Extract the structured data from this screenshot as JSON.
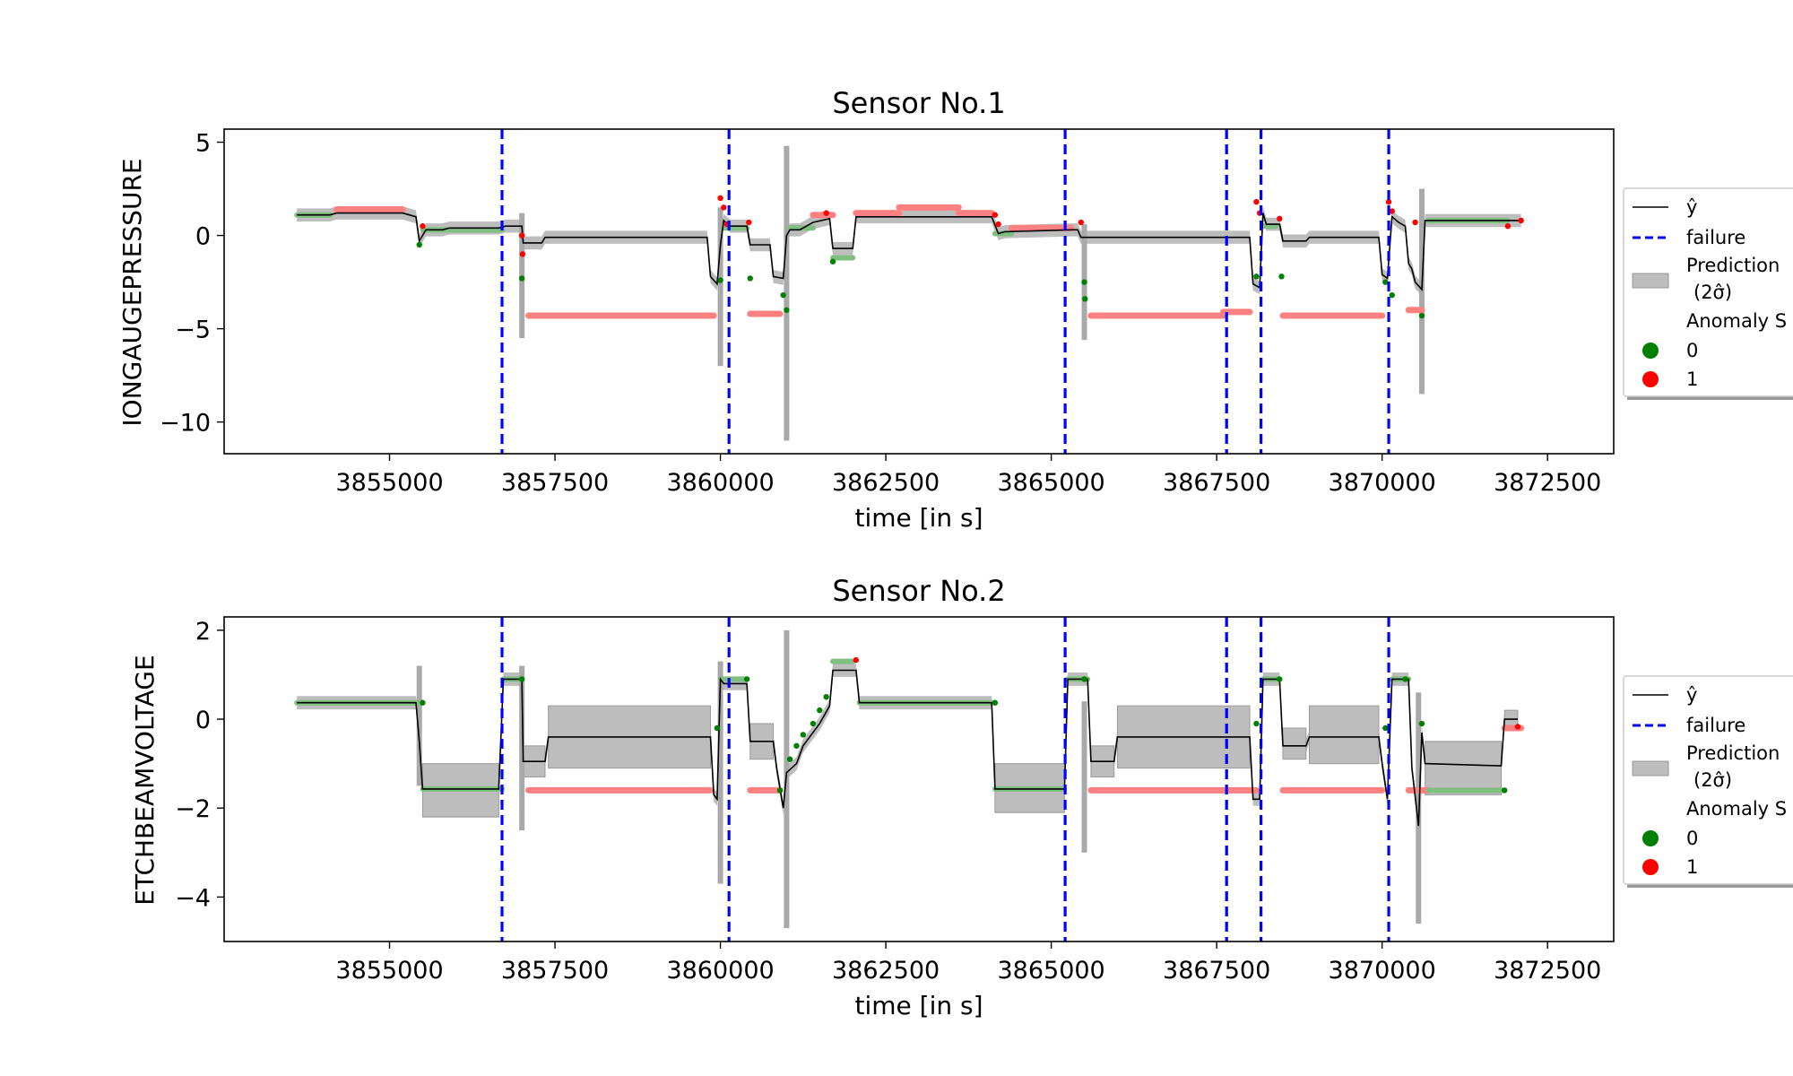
{
  "chart_data": [
    {
      "type": "line",
      "title": "Sensor No.1",
      "xlabel": "time [in s]",
      "ylabel": "IONGAUGEPRESSURE",
      "xlim": [
        3852500,
        3873500
      ],
      "ylim": [
        -11.7,
        5.7
      ],
      "xticks": [
        3855000,
        3857500,
        3860000,
        3862500,
        3865000,
        3867500,
        3870000,
        3872500
      ],
      "xtick_labels": [
        "3855000",
        "3857500",
        "3860000",
        "3862500",
        "3865000",
        "3867500",
        "3870000",
        "3872500"
      ],
      "yticks": [
        5,
        0,
        -5,
        -10
      ],
      "ytick_labels": [
        "5",
        "0",
        "−5",
        "−10"
      ],
      "failures": [
        3856700,
        3860130,
        3865210,
        3867650,
        3868170,
        3870100
      ],
      "y_hat": [
        [
          3853600,
          1.1
        ],
        [
          3854100,
          1.1
        ],
        [
          3854200,
          1.2
        ],
        [
          3855200,
          1.2
        ],
        [
          3855400,
          1.0
        ],
        [
          3855450,
          -0.3
        ],
        [
          3855550,
          0.3
        ],
        [
          3855800,
          0.3
        ],
        [
          3855900,
          0.4
        ],
        [
          3856650,
          0.4
        ],
        [
          3856750,
          0.5
        ],
        [
          3857000,
          0.5
        ],
        [
          3857020,
          -0.4
        ],
        [
          3857300,
          -0.4
        ],
        [
          3857350,
          -0.1
        ],
        [
          3859800,
          -0.1
        ],
        [
          3859850,
          -2.2
        ],
        [
          3859950,
          -2.6
        ],
        [
          3860000,
          -0.5
        ],
        [
          3860050,
          0.8
        ],
        [
          3860150,
          0.5
        ],
        [
          3860400,
          0.5
        ],
        [
          3860450,
          -0.5
        ],
        [
          3860750,
          -0.5
        ],
        [
          3860800,
          -2.2
        ],
        [
          3860950,
          -2.3
        ],
        [
          3861000,
          0.0
        ],
        [
          3861050,
          0.3
        ],
        [
          3861200,
          0.3
        ],
        [
          3861300,
          0.5
        ],
        [
          3861400,
          0.7
        ],
        [
          3861650,
          0.9
        ],
        [
          3861700,
          -0.7
        ],
        [
          3862000,
          -0.7
        ],
        [
          3862050,
          1.0
        ],
        [
          3864100,
          1.0
        ],
        [
          3864200,
          0.1
        ],
        [
          3864300,
          0.2
        ],
        [
          3865300,
          0.3
        ],
        [
          3865400,
          0.3
        ],
        [
          3865450,
          -0.1
        ],
        [
          3868000,
          -0.1
        ],
        [
          3868050,
          -2.6
        ],
        [
          3868150,
          -2.8
        ],
        [
          3868200,
          1.2
        ],
        [
          3868250,
          0.6
        ],
        [
          3868450,
          0.6
        ],
        [
          3868500,
          -0.3
        ],
        [
          3868850,
          -0.3
        ],
        [
          3868900,
          -0.1
        ],
        [
          3869950,
          -0.1
        ],
        [
          3870000,
          -2.1
        ],
        [
          3870080,
          -2.3
        ],
        [
          3870150,
          1.0
        ],
        [
          3870250,
          0.7
        ],
        [
          3870350,
          0.5
        ],
        [
          3870400,
          -1.5
        ],
        [
          3870450,
          -1.8
        ],
        [
          3870500,
          -2.5
        ],
        [
          3870600,
          -2.9
        ],
        [
          3870650,
          0.8
        ],
        [
          3871900,
          0.8
        ],
        [
          3872100,
          0.8
        ]
      ],
      "band_half_width": 0.35,
      "spikes": [
        [
          3857000,
          -5.5,
          1.2
        ],
        [
          3860000,
          -7.0,
          1.5
        ],
        [
          3861000,
          -11.0,
          4.8
        ],
        [
          3865500,
          -5.6,
          0.6
        ],
        [
          3870600,
          -8.5,
          2.5
        ]
      ],
      "anomaly_segments_1": [
        [
          3854200,
          3855200,
          1.4
        ],
        [
          3857100,
          3859900,
          -4.3
        ],
        [
          3860450,
          3860900,
          -4.2
        ],
        [
          3861400,
          3861700,
          1.1
        ],
        [
          3862050,
          3862700,
          1.2
        ],
        [
          3862700,
          3863600,
          1.5
        ],
        [
          3863600,
          3864100,
          1.2
        ],
        [
          3864400,
          3865300,
          0.4
        ],
        [
          3865600,
          3867600,
          -4.3
        ],
        [
          3867600,
          3868000,
          -4.1
        ],
        [
          3868500,
          3870000,
          -4.3
        ],
        [
          3870400,
          3870600,
          -4.0
        ]
      ],
      "anomaly_segments_0": [
        [
          3853600,
          3854100,
          1.1
        ],
        [
          3855500,
          3856700,
          0.3
        ],
        [
          3860050,
          3860400,
          0.4
        ],
        [
          3861050,
          3861400,
          0.4
        ],
        [
          3861700,
          3862000,
          -1.2
        ],
        [
          3864150,
          3864400,
          0.1
        ],
        [
          3868200,
          3868400,
          0.5
        ],
        [
          3870700,
          3871900,
          0.8
        ]
      ],
      "anomaly_points_1": [
        [
          3855500,
          0.5
        ],
        [
          3857000,
          0.0
        ],
        [
          3857010,
          -1.0
        ],
        [
          3860000,
          2.0
        ],
        [
          3860050,
          1.5
        ],
        [
          3860100,
          0.6
        ],
        [
          3860430,
          0.7
        ],
        [
          3861600,
          1.2
        ],
        [
          3864150,
          1.1
        ],
        [
          3864200,
          0.6
        ],
        [
          3865450,
          0.7
        ],
        [
          3868100,
          1.8
        ],
        [
          3868150,
          1.2
        ],
        [
          3868450,
          0.9
        ],
        [
          3870100,
          1.8
        ],
        [
          3870150,
          1.3
        ],
        [
          3870500,
          0.7
        ],
        [
          3871900,
          0.5
        ],
        [
          3872100,
          0.8
        ]
      ],
      "anomaly_points_0": [
        [
          3855450,
          -0.5
        ],
        [
          3857000,
          -2.3
        ],
        [
          3860000,
          -2.4
        ],
        [
          3860450,
          -2.3
        ],
        [
          3860950,
          -3.2
        ],
        [
          3861000,
          -4.0
        ],
        [
          3861700,
          -1.4
        ],
        [
          3865500,
          -2.5
        ],
        [
          3865510,
          -3.4
        ],
        [
          3868100,
          -2.2
        ],
        [
          3868480,
          -2.2
        ],
        [
          3870050,
          -2.5
        ],
        [
          3870150,
          -3.2
        ],
        [
          3870600,
          -4.3
        ]
      ]
    },
    {
      "type": "line",
      "title": "Sensor No.2",
      "xlabel": "time [in s]",
      "ylabel": "ETCHBEAMVOLTAGE",
      "xlim": [
        3852500,
        3873500
      ],
      "ylim": [
        -5.0,
        2.3
      ],
      "xticks": [
        3855000,
        3857500,
        3860000,
        3862500,
        3865000,
        3867500,
        3870000,
        3872500
      ],
      "xtick_labels": [
        "3855000",
        "3857500",
        "3860000",
        "3862500",
        "3865000",
        "3867500",
        "3870000",
        "3872500"
      ],
      "yticks": [
        2,
        0,
        -2,
        -4
      ],
      "ytick_labels": [
        "2",
        "0",
        "−2",
        "−4"
      ],
      "failures": [
        3856700,
        3860130,
        3865210,
        3867650,
        3868170,
        3870100
      ],
      "y_hat": [
        [
          3853600,
          0.37
        ],
        [
          3855400,
          0.37
        ],
        [
          3855450,
          -0.5
        ],
        [
          3855500,
          -1.57
        ],
        [
          3856650,
          -1.57
        ],
        [
          3856720,
          0.9
        ],
        [
          3857000,
          0.9
        ],
        [
          3857020,
          -0.95
        ],
        [
          3857350,
          -0.95
        ],
        [
          3857400,
          -0.4
        ],
        [
          3859850,
          -0.4
        ],
        [
          3859900,
          -1.7
        ],
        [
          3859950,
          -1.8
        ],
        [
          3860000,
          0.9
        ],
        [
          3860050,
          0.8
        ],
        [
          3860400,
          0.8
        ],
        [
          3860450,
          -0.5
        ],
        [
          3860800,
          -0.5
        ],
        [
          3860850,
          -1.1
        ],
        [
          3860950,
          -2.0
        ],
        [
          3861000,
          -1.2
        ],
        [
          3861150,
          -1.0
        ],
        [
          3861250,
          -0.6
        ],
        [
          3861350,
          -0.4
        ],
        [
          3861500,
          -0.1
        ],
        [
          3861650,
          0.3
        ],
        [
          3861700,
          1.1
        ],
        [
          3862050,
          1.1
        ],
        [
          3862100,
          0.37
        ],
        [
          3864100,
          0.37
        ],
        [
          3864150,
          -1.57
        ],
        [
          3865200,
          -1.57
        ],
        [
          3865250,
          0.9
        ],
        [
          3865550,
          0.9
        ],
        [
          3865600,
          -0.95
        ],
        [
          3865950,
          -0.95
        ],
        [
          3866000,
          -0.4
        ],
        [
          3868000,
          -0.4
        ],
        [
          3868050,
          -1.8
        ],
        [
          3868150,
          -1.8
        ],
        [
          3868200,
          0.9
        ],
        [
          3868450,
          0.9
        ],
        [
          3868500,
          -0.6
        ],
        [
          3868850,
          -0.6
        ],
        [
          3868900,
          -0.4
        ],
        [
          3869950,
          -0.4
        ],
        [
          3870000,
          -1.0
        ],
        [
          3870080,
          -1.8
        ],
        [
          3870150,
          0.9
        ],
        [
          3870400,
          0.9
        ],
        [
          3870450,
          -1.1
        ],
        [
          3870550,
          -2.4
        ],
        [
          3870600,
          -0.3
        ],
        [
          3870650,
          -1.0
        ],
        [
          3871800,
          -1.05
        ],
        [
          3871850,
          0.0
        ],
        [
          3872050,
          0.0
        ]
      ],
      "band_half_width": 0.15,
      "bands": [
        [
          3855500,
          3856650,
          -2.2,
          -1.0
        ],
        [
          3857020,
          3857350,
          -1.3,
          -0.6
        ],
        [
          3857400,
          3859850,
          -1.1,
          0.3
        ],
        [
          3860450,
          3860800,
          -0.9,
          -0.1
        ],
        [
          3864150,
          3865200,
          -2.1,
          -1.0
        ],
        [
          3865600,
          3865950,
          -1.3,
          -0.6
        ],
        [
          3866000,
          3868000,
          -1.1,
          0.3
        ],
        [
          3868500,
          3868850,
          -0.9,
          -0.2
        ],
        [
          3868900,
          3869950,
          -1.0,
          0.3
        ],
        [
          3870650,
          3871800,
          -1.7,
          -0.5
        ],
        [
          3871850,
          3872050,
          -0.2,
          0.2
        ]
      ],
      "spikes": [
        [
          3855450,
          -1.5,
          1.2
        ],
        [
          3857000,
          -2.5,
          1.2
        ],
        [
          3860000,
          -3.7,
          1.3
        ],
        [
          3861000,
          -4.7,
          2.0
        ],
        [
          3865500,
          -3.0,
          0.4
        ],
        [
          3870550,
          -4.6,
          0.6
        ]
      ],
      "anomaly_segments_1": [
        [
          3857100,
          3859850,
          -1.6
        ],
        [
          3860450,
          3860900,
          -1.6
        ],
        [
          3865600,
          3867600,
          -1.6
        ],
        [
          3867600,
          3868100,
          -1.6
        ],
        [
          3868500,
          3870000,
          -1.6
        ],
        [
          3870400,
          3870700,
          -1.6
        ],
        [
          3871850,
          3872100,
          -0.2
        ]
      ],
      "anomaly_segments_0": [
        [
          3853600,
          3855450,
          0.37
        ],
        [
          3855500,
          3856700,
          -1.57
        ],
        [
          3856720,
          3857000,
          0.9
        ],
        [
          3860000,
          3860400,
          0.9
        ],
        [
          3861700,
          3862000,
          1.3
        ],
        [
          3862100,
          3864100,
          0.37
        ],
        [
          3864150,
          3865200,
          -1.57
        ],
        [
          3865250,
          3865550,
          0.9
        ],
        [
          3868200,
          3868450,
          0.9
        ],
        [
          3870150,
          3870400,
          0.9
        ],
        [
          3870700,
          3871850,
          -1.6
        ]
      ],
      "anomaly_points_1": [
        [
          3862050,
          1.33
        ],
        [
          3872050,
          -0.17
        ]
      ],
      "anomaly_points_0": [
        [
          3855500,
          0.37
        ],
        [
          3857000,
          0.9
        ],
        [
          3859950,
          -0.2
        ],
        [
          3860400,
          0.9
        ],
        [
          3860900,
          -1.6
        ],
        [
          3861050,
          -0.9
        ],
        [
          3861150,
          -0.6
        ],
        [
          3861250,
          -0.35
        ],
        [
          3861400,
          -0.1
        ],
        [
          3861500,
          0.2
        ],
        [
          3861600,
          0.5
        ],
        [
          3864150,
          0.37
        ],
        [
          3865500,
          0.9
        ],
        [
          3868100,
          -0.1
        ],
        [
          3868450,
          0.9
        ],
        [
          3870050,
          -0.2
        ],
        [
          3870350,
          0.9
        ],
        [
          3870600,
          -0.1
        ],
        [
          3871850,
          -1.6
        ]
      ]
    }
  ],
  "legend": {
    "yhat_label": "ŷ",
    "failure_label": "failure",
    "prediction_label": "Prediction",
    "prediction_sub": "(2σ̂)",
    "anomaly_title": "Anomaly S",
    "class_0": "0",
    "class_1": "1"
  },
  "colors": {
    "yhat": "#000000",
    "failure": "#0000ff",
    "band": "#bdbdbd",
    "anomaly_0": "#008000",
    "anomaly_1": "#ff0000",
    "anomaly_0_light": "#7fbf7f",
    "anomaly_1_light": "#ff8080"
  }
}
